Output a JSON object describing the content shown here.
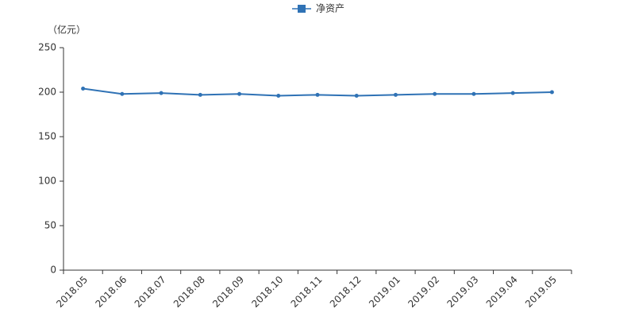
{
  "chart_data": {
    "type": "line",
    "ylabel": "（亿元）",
    "categories": [
      "2018.05",
      "2018.06",
      "2018.07",
      "2018.08",
      "2018.09",
      "2018.10",
      "2018.11",
      "2018.12",
      "2019.01",
      "2019.02",
      "2019.03",
      "2019.04",
      "2019.05"
    ],
    "series": [
      {
        "name": "净资产",
        "color": "#2f72b5",
        "values": [
          204,
          198,
          199,
          197,
          198,
          196,
          197,
          196,
          197,
          198,
          198,
          199,
          200
        ]
      }
    ],
    "ylim": [
      0,
      250
    ],
    "yticks": [
      0,
      50,
      100,
      150,
      200,
      250
    ],
    "grid": false,
    "legend": "top"
  }
}
